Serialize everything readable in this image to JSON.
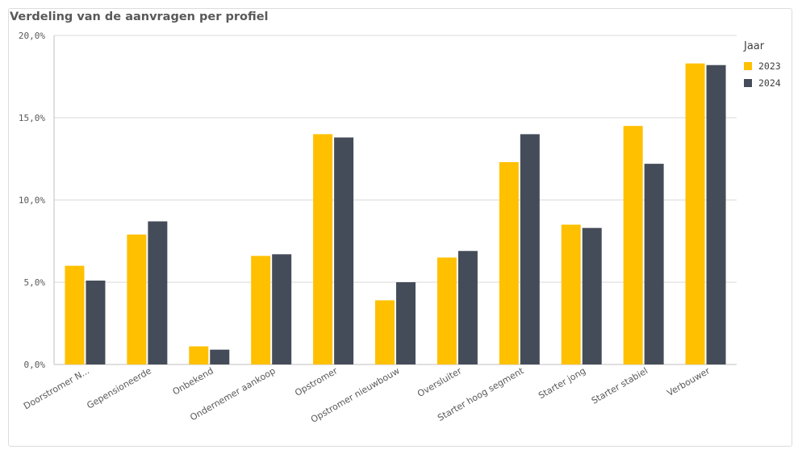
{
  "chart_data": {
    "type": "bar",
    "title": "Verdeling van de aanvragen per profiel",
    "xlabel": "",
    "ylabel": "",
    "categories": [
      "Doorstromer N...",
      "Gepensioneerde",
      "Onbekend",
      "Ondernemer aankoop",
      "Opstromer",
      "Opstromer nieuwbouw",
      "Oversluiter",
      "Starter hoog segment",
      "Starter jong",
      "Starter stabiel",
      "Verbouwer"
    ],
    "series": [
      {
        "name": "2023",
        "color": "#ffc000",
        "values": [
          6.0,
          7.9,
          1.1,
          6.6,
          14.0,
          3.9,
          6.5,
          12.3,
          8.5,
          14.5,
          18.3
        ]
      },
      {
        "name": "2024",
        "color": "#454c59",
        "values": [
          5.1,
          8.7,
          0.9,
          6.7,
          13.8,
          5.0,
          6.9,
          14.0,
          8.3,
          12.2,
          18.2
        ]
      }
    ],
    "ylim": [
      0,
      20
    ],
    "yticks": [
      "0,0%",
      "5,0%",
      "10,0%",
      "15,0%",
      "20,0%"
    ],
    "grid": true,
    "legend": {
      "title": "Jaar",
      "position": "right"
    }
  }
}
